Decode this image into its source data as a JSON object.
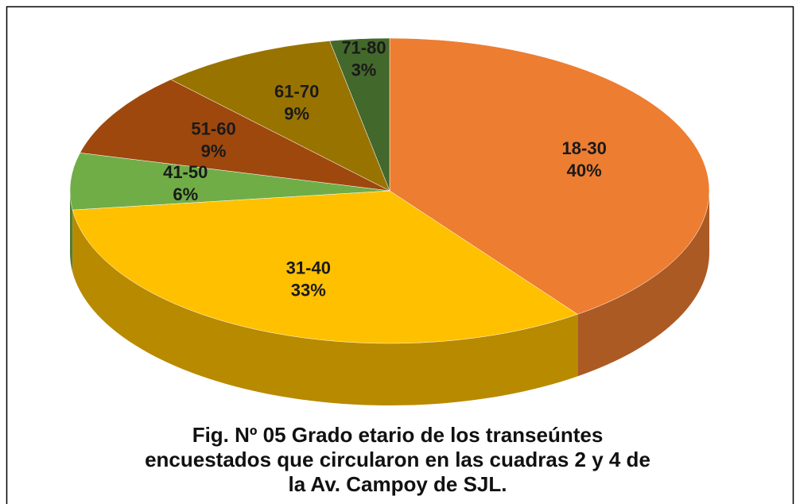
{
  "chart_data": {
    "type": "pie",
    "title": "Fig. Nº 05 Grado etario de los transeúntes\nencuestados que circularon en las cuadras 2 y 4 de\nla Av. Campoy de SJL.",
    "categories": [
      "18-30",
      "31-40",
      "41-50",
      "51-60",
      "61-70",
      "71-80"
    ],
    "values": [
      40,
      33,
      6,
      9,
      9,
      3
    ],
    "value_labels": [
      "40%",
      "33%",
      "6%",
      "9%",
      "9%",
      "3%"
    ],
    "colors": [
      "#ED7D31",
      "#FFC000",
      "#70AD47",
      "#9E480E",
      "#997300",
      "#43682B"
    ]
  }
}
